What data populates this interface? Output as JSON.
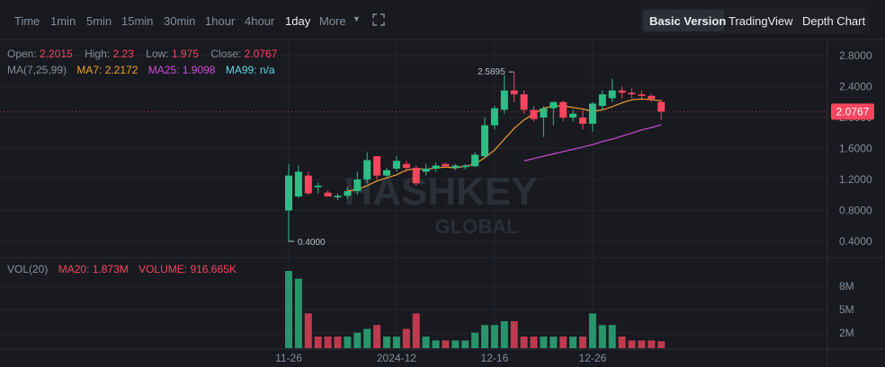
{
  "toolbar": {
    "timeframes": [
      "Time",
      "1min",
      "5min",
      "15min",
      "30min",
      "1hour",
      "4hour",
      "1day",
      "More"
    ],
    "active": "1day",
    "versions": [
      "Basic Version",
      "TradingView",
      "Depth Chart"
    ],
    "active_version": "Basic Version"
  },
  "ohlc": {
    "open_label": "Open:",
    "open": "2.2015",
    "high_label": "High:",
    "high": "2.23",
    "low_label": "Low:",
    "low": "1.975",
    "close_label": "Close:",
    "close": "2.0767"
  },
  "ma": {
    "label": "MA(7,25,99)",
    "ma7": "MA7: 2.2172",
    "ma25": "MA25: 1.9098",
    "ma99": "MA99: n/a"
  },
  "vol": {
    "label": "VOL(20)",
    "ma20": "MA20: 1.873M",
    "volume": "VOLUME: 916.665K"
  },
  "watermark": {
    "top": "HASHKEY",
    "bottom": "GLOBAL"
  },
  "colors": {
    "up": "#2ebd85",
    "down": "#f6465d",
    "ma7": "#f0a030",
    "ma25": "#d04cd9",
    "bg": "#181a20"
  },
  "chart_data": [
    {
      "type": "candlestick",
      "title": "",
      "price_axis_ticks": [
        "2.8000",
        "2.4000",
        "2.0000",
        "1.6000",
        "1.2000",
        "0.8000",
        "0.4000"
      ],
      "ylim": [
        0.3,
        2.9
      ],
      "date_ticks": [
        "11-26",
        "2024-12",
        "12-16",
        "12-26"
      ],
      "current_price": "2.0767",
      "max_marker": "2.5895",
      "min_marker": "0.4000",
      "candles": [
        {
          "date": "2024-11-26",
          "o": 0.8,
          "h": 1.4,
          "l": 0.4,
          "c": 1.25
        },
        {
          "date": "2024-11-27",
          "o": 0.98,
          "h": 1.38,
          "l": 0.96,
          "c": 1.3
        },
        {
          "date": "2024-11-28",
          "o": 1.25,
          "h": 1.3,
          "l": 1.0,
          "c": 1.02
        },
        {
          "date": "2024-11-29",
          "o": 1.1,
          "h": 1.16,
          "l": 1.02,
          "c": 1.12
        },
        {
          "date": "2024-11-30",
          "o": 1.03,
          "h": 1.06,
          "l": 0.98,
          "c": 0.98
        },
        {
          "date": "2024-12-01",
          "o": 0.97,
          "h": 1.02,
          "l": 0.93,
          "c": 0.99
        },
        {
          "date": "2024-12-02",
          "o": 0.99,
          "h": 1.1,
          "l": 0.95,
          "c": 1.05
        },
        {
          "date": "2024-12-03",
          "o": 1.05,
          "h": 1.3,
          "l": 1.0,
          "c": 1.2
        },
        {
          "date": "2024-12-04",
          "o": 1.2,
          "h": 1.55,
          "l": 1.15,
          "c": 1.45
        },
        {
          "date": "2024-12-05",
          "o": 1.5,
          "h": 1.5,
          "l": 1.2,
          "c": 1.25
        },
        {
          "date": "2024-12-06",
          "o": 1.25,
          "h": 1.35,
          "l": 1.22,
          "c": 1.32
        },
        {
          "date": "2024-12-07",
          "o": 1.34,
          "h": 1.5,
          "l": 1.3,
          "c": 1.44
        },
        {
          "date": "2024-12-08",
          "o": 1.4,
          "h": 1.44,
          "l": 1.3,
          "c": 1.35
        },
        {
          "date": "2024-12-09",
          "o": 1.35,
          "h": 1.38,
          "l": 1.12,
          "c": 1.15
        },
        {
          "date": "2024-12-10",
          "o": 1.3,
          "h": 1.4,
          "l": 1.25,
          "c": 1.34
        },
        {
          "date": "2024-12-11",
          "o": 1.34,
          "h": 1.42,
          "l": 1.3,
          "c": 1.38
        },
        {
          "date": "2024-12-12",
          "o": 1.4,
          "h": 1.42,
          "l": 1.35,
          "c": 1.37
        },
        {
          "date": "2024-12-13",
          "o": 1.35,
          "h": 1.4,
          "l": 1.32,
          "c": 1.38
        },
        {
          "date": "2024-12-14",
          "o": 1.36,
          "h": 1.4,
          "l": 1.33,
          "c": 1.38
        },
        {
          "date": "2024-12-15",
          "o": 1.37,
          "h": 1.55,
          "l": 1.36,
          "c": 1.52
        },
        {
          "date": "2024-12-16",
          "o": 1.5,
          "h": 2.0,
          "l": 1.48,
          "c": 1.9
        },
        {
          "date": "2024-12-17",
          "o": 1.9,
          "h": 2.15,
          "l": 1.85,
          "c": 2.12
        },
        {
          "date": "2024-12-18",
          "o": 2.1,
          "h": 2.55,
          "l": 2.05,
          "c": 2.35
        },
        {
          "date": "2024-12-19",
          "o": 2.35,
          "h": 2.59,
          "l": 2.2,
          "c": 2.3
        },
        {
          "date": "2024-12-20",
          "o": 2.3,
          "h": 2.35,
          "l": 2.05,
          "c": 2.1
        },
        {
          "date": "2024-12-21",
          "o": 2.1,
          "h": 2.15,
          "l": 1.95,
          "c": 1.98
        },
        {
          "date": "2024-12-22",
          "o": 2.0,
          "h": 2.15,
          "l": 1.75,
          "c": 2.12
        },
        {
          "date": "2024-12-23",
          "o": 2.12,
          "h": 2.2,
          "l": 1.9,
          "c": 2.2
        },
        {
          "date": "2024-12-24",
          "o": 2.2,
          "h": 2.22,
          "l": 1.95,
          "c": 2.0
        },
        {
          "date": "2024-12-25",
          "o": 2.0,
          "h": 2.1,
          "l": 1.95,
          "c": 2.05
        },
        {
          "date": "2024-12-26",
          "o": 2.0,
          "h": 2.1,
          "l": 1.85,
          "c": 1.92
        },
        {
          "date": "2024-12-27",
          "o": 1.92,
          "h": 2.2,
          "l": 1.82,
          "c": 2.18
        },
        {
          "date": "2024-12-28",
          "o": 2.15,
          "h": 2.35,
          "l": 2.1,
          "c": 2.3
        },
        {
          "date": "2024-12-29",
          "o": 2.25,
          "h": 2.5,
          "l": 2.2,
          "c": 2.35
        },
        {
          "date": "2024-12-30",
          "o": 2.35,
          "h": 2.4,
          "l": 2.25,
          "c": 2.32
        },
        {
          "date": "2024-12-31",
          "o": 2.32,
          "h": 2.38,
          "l": 2.25,
          "c": 2.3
        },
        {
          "date": "2025-01-01",
          "o": 2.3,
          "h": 2.35,
          "l": 2.22,
          "c": 2.28
        },
        {
          "date": "2025-01-02",
          "o": 2.28,
          "h": 2.3,
          "l": 2.2,
          "c": 2.24
        },
        {
          "date": "2025-01-03",
          "o": 2.2015,
          "h": 2.23,
          "l": 1.975,
          "c": 2.0767
        }
      ],
      "ma7": [
        [
          6,
          1.05
        ],
        [
          7,
          1.07
        ],
        [
          8,
          1.12
        ],
        [
          9,
          1.18
        ],
        [
          10,
          1.22
        ],
        [
          11,
          1.26
        ],
        [
          12,
          1.32
        ],
        [
          13,
          1.34
        ],
        [
          14,
          1.33
        ],
        [
          15,
          1.35
        ],
        [
          16,
          1.36
        ],
        [
          17,
          1.35
        ],
        [
          18,
          1.37
        ],
        [
          19,
          1.4
        ],
        [
          20,
          1.48
        ],
        [
          21,
          1.58
        ],
        [
          22,
          1.72
        ],
        [
          23,
          1.86
        ],
        [
          24,
          1.97
        ],
        [
          25,
          2.05
        ],
        [
          26,
          2.12
        ],
        [
          27,
          2.15
        ],
        [
          28,
          2.15
        ],
        [
          29,
          2.13
        ],
        [
          30,
          2.11
        ],
        [
          31,
          2.08
        ],
        [
          32,
          2.1
        ],
        [
          33,
          2.14
        ],
        [
          34,
          2.19
        ],
        [
          35,
          2.23
        ],
        [
          36,
          2.24
        ],
        [
          37,
          2.23
        ],
        [
          38,
          2.2172
        ]
      ],
      "ma25": [
        [
          24,
          1.44
        ],
        [
          25,
          1.47
        ],
        [
          26,
          1.5
        ],
        [
          27,
          1.53
        ],
        [
          28,
          1.56
        ],
        [
          29,
          1.59
        ],
        [
          30,
          1.62
        ],
        [
          31,
          1.65
        ],
        [
          32,
          1.69
        ],
        [
          33,
          1.72
        ],
        [
          34,
          1.76
        ],
        [
          35,
          1.8
        ],
        [
          36,
          1.84
        ],
        [
          37,
          1.87
        ],
        [
          38,
          1.9098
        ]
      ]
    },
    {
      "type": "bar",
      "title": "",
      "volume_axis_ticks": [
        "8M",
        "5M",
        "2M"
      ],
      "ylim": [
        0,
        10
      ],
      "values": [
        10.0,
        9.0,
        4.5,
        1.5,
        1.5,
        1.5,
        1.5,
        2.0,
        2.5,
        3.0,
        1.5,
        1.5,
        2.5,
        4.5,
        1.5,
        1.0,
        1.0,
        1.0,
        1.0,
        2.0,
        3.0,
        3.0,
        3.5,
        3.5,
        1.5,
        1.5,
        1.5,
        1.5,
        1.5,
        1.5,
        1.5,
        4.5,
        3.0,
        3.0,
        1.5,
        1.0,
        1.0,
        1.0,
        0.9
      ],
      "up": [
        1,
        1,
        0,
        0,
        0,
        0,
        1,
        1,
        1,
        0,
        1,
        1,
        0,
        0,
        1,
        1,
        0,
        1,
        1,
        1,
        1,
        1,
        1,
        0,
        0,
        0,
        1,
        1,
        0,
        1,
        0,
        1,
        1,
        1,
        0,
        0,
        0,
        0,
        0
      ]
    }
  ]
}
